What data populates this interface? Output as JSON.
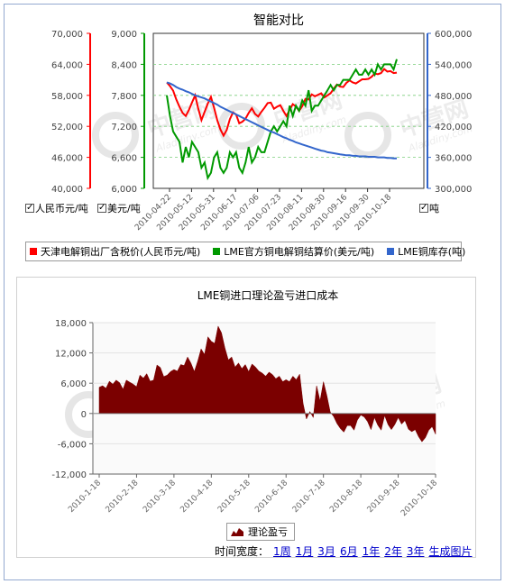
{
  "chart_data": [
    {
      "type": "line",
      "title": "智能对比",
      "x_ticks": [
        "2010-04-22",
        "2010-05-12",
        "2010-05-31",
        "2010-06-17",
        "2010-07-06",
        "2010-07-23",
        "2010-08-11",
        "2010-08-30",
        "2010-09-16",
        "2010-09-30",
        "2010-10-18"
      ],
      "axes": [
        {
          "name": "rmb",
          "unit_label": "人民币元/吨",
          "color": "#ff0000",
          "ylim": [
            40000,
            70000
          ],
          "ticks": [
            "70,000",
            "64,000",
            "58,000",
            "52,000",
            "46,000",
            "40,000"
          ]
        },
        {
          "name": "usd",
          "unit_label": "美元/吨",
          "color": "#009900",
          "ylim": [
            6000,
            9000
          ],
          "ticks": [
            "9,000",
            "8,400",
            "7,800",
            "7,200",
            "6,600",
            "6,000"
          ]
        },
        {
          "name": "stock",
          "unit_label": "吨",
          "color": "#3366cc",
          "ylim": [
            300000,
            600000
          ],
          "ticks": [
            "600,000",
            "540,000",
            "480,000",
            "420,000",
            "360,000",
            "300,000"
          ]
        }
      ],
      "series": [
        {
          "name": "天津电解铜出厂含税价(人民币元/吨)",
          "axis": "rmb",
          "color": "#ff0000",
          "values": [
            60500,
            59800,
            58900,
            57200,
            55800,
            54600,
            54000,
            55200,
            56600,
            58000,
            55400,
            53200,
            54800,
            56400,
            57700,
            55600,
            53200,
            51400,
            50200,
            51300,
            53400,
            54700,
            54300,
            52600,
            52900,
            53500,
            54600,
            55500,
            54400,
            53900,
            54800,
            55600,
            56500,
            56600,
            55400,
            55800,
            56100,
            55000,
            54000,
            55200,
            56300,
            55800,
            55000,
            55900,
            57300,
            57200,
            58200,
            57800,
            58100,
            58400,
            57600,
            58000,
            58400,
            59300,
            60100,
            59700,
            59600,
            60400,
            60900,
            60500,
            60300,
            60700,
            61100,
            61100,
            61200,
            61600,
            62200,
            62100,
            62300,
            63100,
            62600,
            62700,
            62300,
            62400
          ]
        },
        {
          "name": "LME官方铜电解铜结算价(美元/吨)",
          "axis": "usd",
          "color": "#009900",
          "values": [
            7800,
            7400,
            7100,
            7000,
            6900,
            6500,
            6800,
            6600,
            6900,
            6800,
            6700,
            6400,
            6500,
            6200,
            6300,
            6600,
            6700,
            6400,
            6300,
            6400,
            6700,
            6600,
            6700,
            6400,
            6300,
            6500,
            6800,
            6500,
            6600,
            6800,
            6700,
            6700,
            6900,
            7100,
            7200,
            7100,
            7200,
            7300,
            7200,
            7600,
            7400,
            7600,
            7500,
            7700,
            7600,
            7900,
            7500,
            7600,
            7600,
            7700,
            7800,
            7900,
            8000,
            7900,
            8000,
            8000,
            8100,
            8100,
            8100,
            8200,
            8300,
            8200,
            8200,
            8300,
            8200,
            8300,
            8200,
            8400,
            8300,
            8400,
            8400,
            8400,
            8300,
            8500
          ]
        },
        {
          "name": "LME铜库存(吨)",
          "axis": "stock",
          "color": "#3366cc",
          "values": [
            505000,
            503000,
            500000,
            496000,
            493000,
            491000,
            488000,
            486000,
            483000,
            480000,
            478000,
            476000,
            474000,
            471000,
            468000,
            465000,
            462000,
            458000,
            455000,
            452000,
            449000,
            446000,
            443000,
            440000,
            437000,
            434000,
            431000,
            428000,
            425000,
            422000,
            419000,
            416000,
            413000,
            410000,
            408000,
            405000,
            402000,
            399000,
            397000,
            394000,
            392000,
            389000,
            387000,
            385000,
            383000,
            381000,
            379000,
            377000,
            375000,
            373000,
            372000,
            370000,
            369000,
            368000,
            367000,
            366000,
            365000,
            364000,
            364000,
            363000,
            363000,
            362000,
            362000,
            362000,
            361000,
            361000,
            361000,
            360000,
            360000,
            360000,
            359000,
            359000,
            358000,
            358000
          ]
        }
      ]
    },
    {
      "type": "area",
      "title": "LME铜进口理论盈亏进口成本",
      "x_ticks": [
        "2010-1-18",
        "2010-2-18",
        "2010-3-18",
        "2010-4-18",
        "2010-5-18",
        "2010-6-18",
        "2010-7-18",
        "2010-8-18",
        "2010-9-18",
        "2010-10-18"
      ],
      "ylim": [
        -12000,
        18000
      ],
      "y_ticks": [
        "18,000",
        "12,000",
        "6,000",
        "0",
        "-6,000",
        "-12,000"
      ],
      "series": [
        {
          "name": "理论盈亏",
          "color": "#7b0000",
          "values": [
            5200,
            5500,
            5000,
            6400,
            5800,
            6600,
            6100,
            4800,
            6600,
            6200,
            5800,
            5300,
            7600,
            7000,
            7900,
            6400,
            6600,
            9600,
            9100,
            7300,
            7600,
            8300,
            8700,
            8400,
            9700,
            9500,
            11200,
            10000,
            8300,
            10400,
            12800,
            11700,
            15200,
            14300,
            13900,
            17300,
            16000,
            13000,
            10600,
            11200,
            9200,
            10000,
            8900,
            9700,
            8300,
            9800,
            9200,
            8400,
            8000,
            7400,
            8200,
            7700,
            6900,
            7400,
            6300,
            6700,
            6300,
            7400,
            6700,
            7800,
            2000,
            -1100,
            400,
            -800,
            5500,
            2500,
            6300,
            3600,
            300,
            -600,
            -2000,
            -3000,
            -3700,
            -2400,
            -2400,
            -3300,
            -1300,
            -300,
            -700,
            -1600,
            -3200,
            -800,
            -2300,
            -3300,
            -400,
            -2200,
            -3200,
            -2200,
            -800,
            -2100,
            -1400,
            -3100,
            -3600,
            -3200,
            -4600,
            -5600,
            -4800,
            -3300,
            -2600,
            -4100
          ]
        }
      ],
      "legend": "理论盈亏"
    }
  ],
  "unit_checks": {
    "rmb": "人民币元/吨",
    "usd": "美元/吨",
    "stock": "吨"
  },
  "timebar": {
    "label": "时间宽度：",
    "options": [
      "1周",
      "1月",
      "3月",
      "6月",
      "1年",
      "2年",
      "3年"
    ],
    "generate": "生成图片"
  },
  "watermark": {
    "cn": "中营网",
    "en": "Aladdiny.com"
  }
}
